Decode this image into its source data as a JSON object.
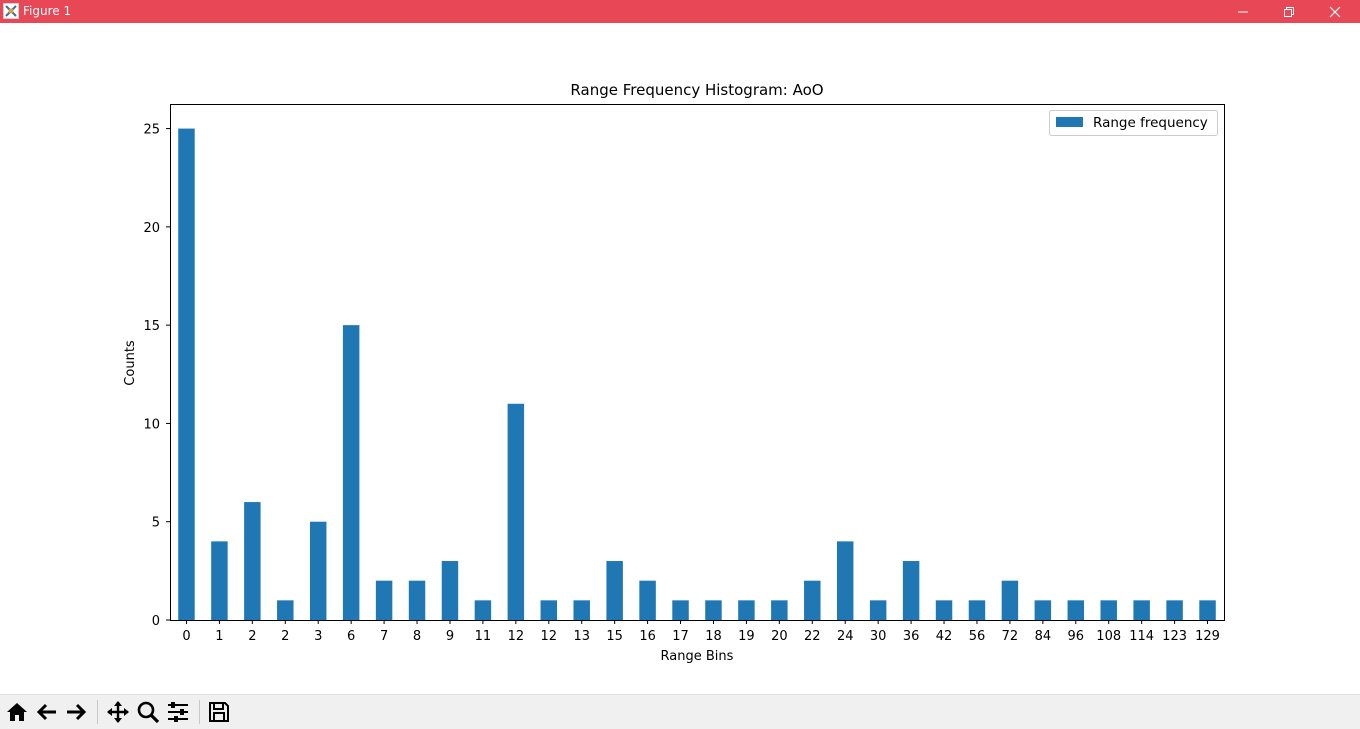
{
  "window": {
    "title": "Figure 1",
    "titlebar_color": "#e84856",
    "controls": [
      "minimize-icon",
      "restore-icon",
      "close-icon"
    ]
  },
  "toolbar": {
    "buttons": [
      "home-icon",
      "back-arrow-icon",
      "forward-arrow-icon",
      "pan-icon",
      "zoom-icon",
      "configure-subplots-icon",
      "save-icon"
    ]
  },
  "chart_data": {
    "type": "bar",
    "title": "Range Frequency Histogram: AoO",
    "xlabel": "Range Bins",
    "ylabel": "Counts",
    "categories": [
      "0",
      "1",
      "2",
      "2",
      "3",
      "6",
      "7",
      "8",
      "9",
      "11",
      "12",
      "12",
      "13",
      "15",
      "16",
      "17",
      "18",
      "19",
      "20",
      "22",
      "24",
      "30",
      "36",
      "42",
      "56",
      "72",
      "84",
      "96",
      "108",
      "114",
      "123",
      "129"
    ],
    "series": [
      {
        "name": "Range frequency",
        "color": "#1f77b4",
        "values": [
          25,
          4,
          6,
          1,
          5,
          15,
          2,
          2,
          3,
          1,
          11,
          1,
          1,
          3,
          2,
          1,
          1,
          1,
          1,
          2,
          4,
          1,
          3,
          1,
          1,
          2,
          1,
          1,
          1,
          1,
          1,
          1
        ]
      }
    ],
    "ylim": [
      0,
      26.25
    ],
    "yticks": [
      0,
      5,
      10,
      15,
      20,
      25
    ],
    "grid": false,
    "legend_position": "upper right"
  }
}
